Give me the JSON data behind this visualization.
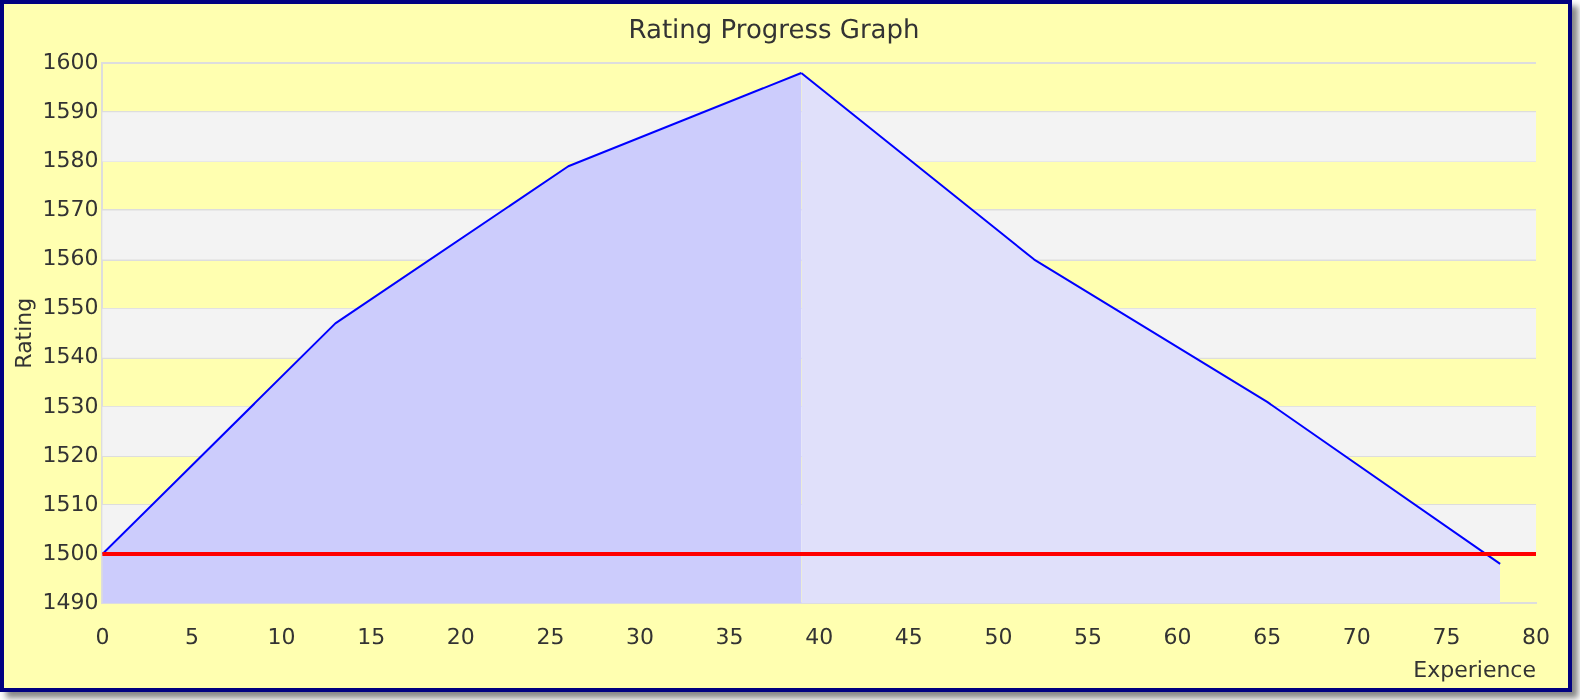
{
  "chart_data": {
    "type": "area",
    "title": "Rating Progress Graph",
    "xlabel": "Experience",
    "ylabel": "Rating",
    "series": [
      {
        "color": "#ccccfc",
        "x": [
          0,
          13,
          26,
          39
        ],
        "values": [
          1500,
          1547,
          1579,
          1598
        ]
      },
      {
        "color": "#e0e0fa",
        "x": [
          39,
          52,
          65,
          78
        ],
        "values": [
          1598,
          1560,
          1531,
          1498
        ]
      }
    ],
    "xlim": [
      0,
      80
    ],
    "xticks": [
      0,
      5,
      10,
      15,
      20,
      25,
      30,
      35,
      40,
      45,
      50,
      55,
      60,
      65,
      70,
      75,
      80
    ],
    "ylim": [
      1490,
      1600
    ],
    "yticks": [
      1490,
      1500,
      1510,
      1520,
      1530,
      1540,
      1550,
      1560,
      1570,
      1580,
      1590,
      1600
    ],
    "ref_lines": [
      {
        "axis": "y",
        "value": 1500,
        "color": "#ff0000"
      }
    ],
    "grid": "y",
    "legend": false
  }
}
